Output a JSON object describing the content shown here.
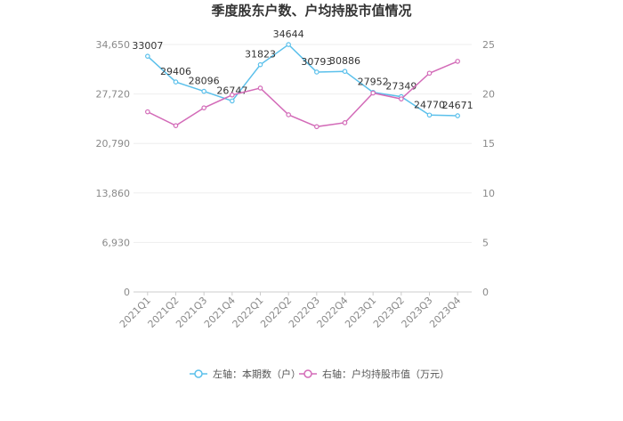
{
  "chart_data": {
    "type": "line",
    "title": "季度股东户数、户均持股市值情况",
    "categories": [
      "2021Q1",
      "2021Q2",
      "2021Q3",
      "2021Q4",
      "2022Q1",
      "2022Q2",
      "2022Q3",
      "2022Q4",
      "2023Q1",
      "2023Q2",
      "2023Q3",
      "2023Q4"
    ],
    "left_axis": {
      "ticks": [
        "0",
        "6,930",
        "13,860",
        "20,790",
        "27,720",
        "34,650"
      ],
      "ylim": [
        0,
        34650
      ]
    },
    "right_axis": {
      "ticks": [
        "0",
        "5",
        "10",
        "15",
        "20",
        "25"
      ],
      "ylim": [
        0,
        25
      ]
    },
    "series": [
      {
        "name": "左轴：本期数（户）",
        "axis": "left",
        "color": "#5bc0eb",
        "values": [
          33007,
          29406,
          28096,
          26747,
          31823,
          34644,
          30793,
          30886,
          27952,
          27349,
          24770,
          24671
        ],
        "labels": [
          "33007",
          "29406",
          "28096",
          "26747",
          "31823",
          "34644",
          "30793",
          "30886",
          "27952",
          "27349",
          "24770",
          "24671"
        ]
      },
      {
        "name": "右轴：户均持股市值（万元）",
        "axis": "right",
        "color": "#d36bb8",
        "values": [
          18.2,
          16.8,
          18.6,
          19.9,
          20.6,
          17.9,
          16.7,
          17.1,
          20.1,
          19.5,
          22.1,
          23.3
        ]
      }
    ],
    "grid": true,
    "legend": "bottom"
  }
}
